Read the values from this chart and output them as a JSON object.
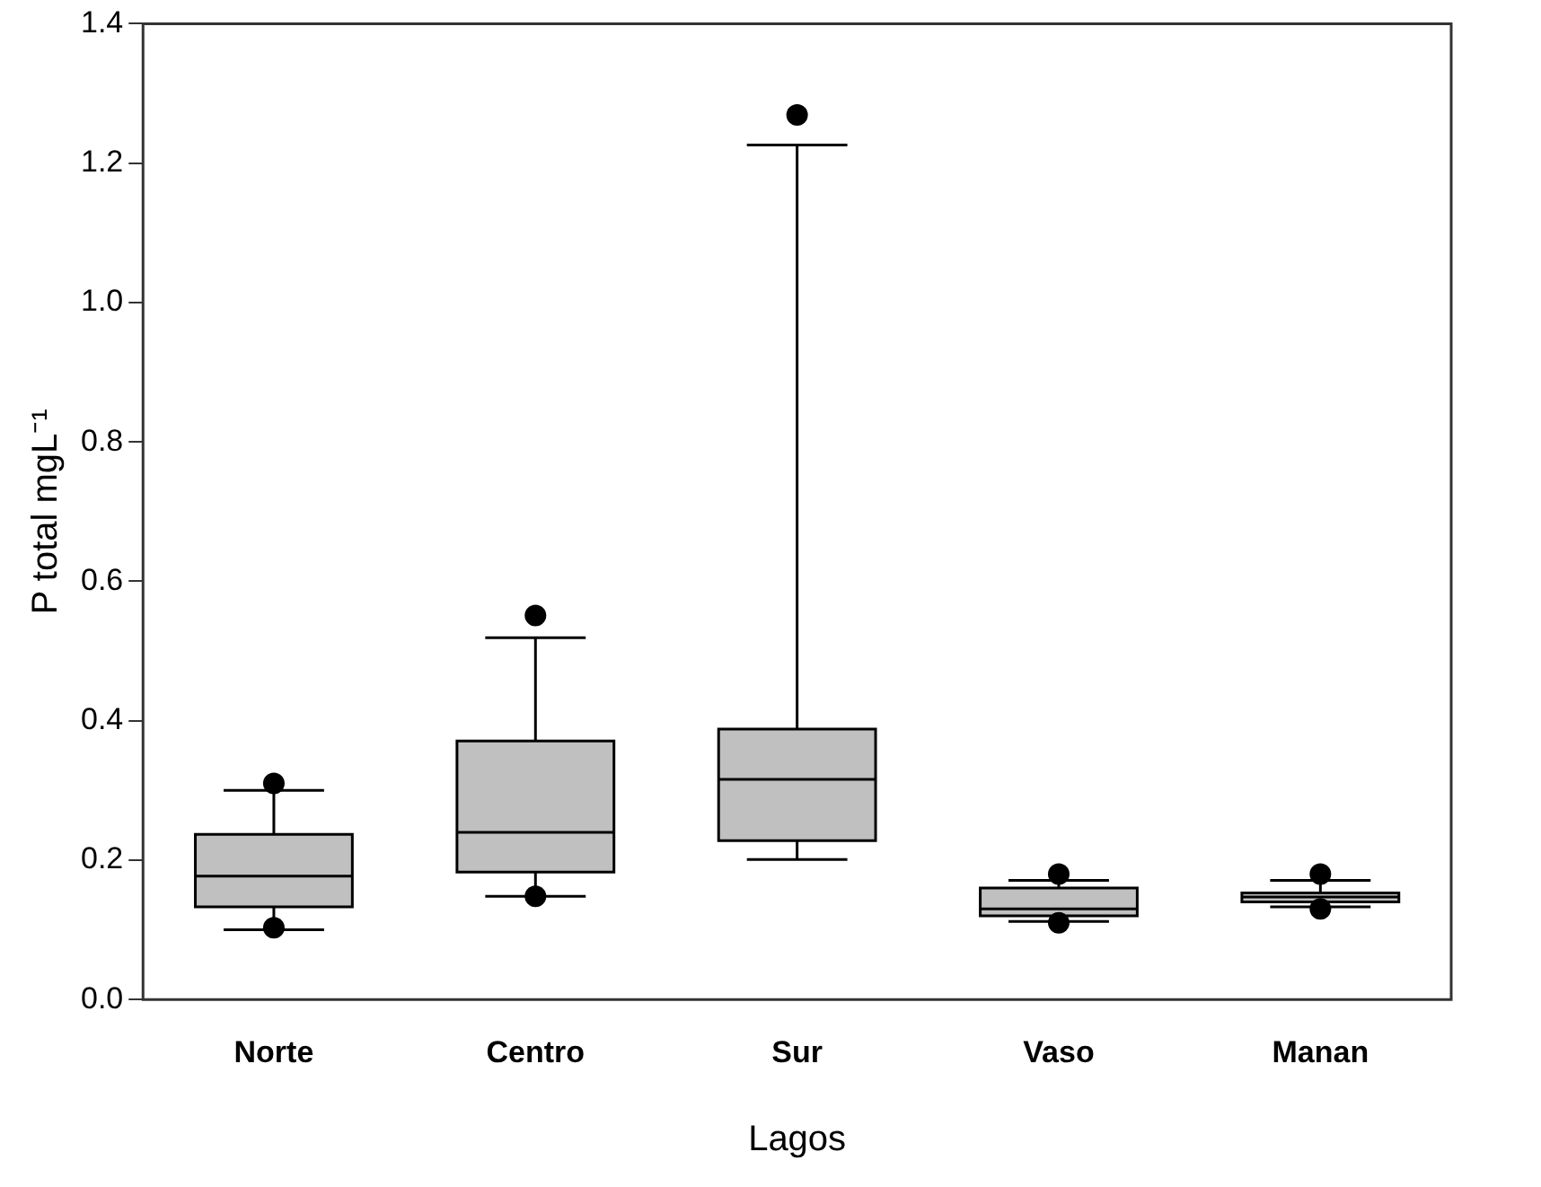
{
  "chart_data": {
    "type": "box",
    "xlabel": "Lagos",
    "ylabel": "P total mgL⁻¹",
    "categories": [
      "Norte",
      "Centro",
      "Sur",
      "Vaso",
      "Manan"
    ],
    "color": "#c0c0c0",
    "boxes": [
      {
        "low": 0.1,
        "q1": 0.133,
        "median": 0.177,
        "q3": 0.237,
        "high": 0.3,
        "outliers": [
          0.31,
          0.103
        ]
      },
      {
        "low": 0.148,
        "q1": 0.183,
        "median": 0.24,
        "q3": 0.371,
        "high": 0.519,
        "outliers": [
          0.551,
          0.148
        ]
      },
      {
        "low": 0.201,
        "q1": 0.228,
        "median": 0.316,
        "q3": 0.388,
        "high": 1.226,
        "outliers": [
          1.269
        ]
      },
      {
        "low": 0.112,
        "q1": 0.12,
        "median": 0.13,
        "q3": 0.16,
        "high": 0.171,
        "outliers": [
          0.18,
          0.11
        ]
      },
      {
        "low": 0.133,
        "q1": 0.14,
        "median": 0.147,
        "q3": 0.153,
        "high": 0.171,
        "outliers": [
          0.18,
          0.13
        ]
      }
    ],
    "ylim": [
      0,
      1.4
    ],
    "yticks": [
      {
        "value": 0,
        "label": "0.0"
      },
      0.2,
      0.4,
      0.6,
      0.8,
      {
        "value": 1,
        "label": "1.0"
      },
      1.2,
      1.4
    ]
  }
}
